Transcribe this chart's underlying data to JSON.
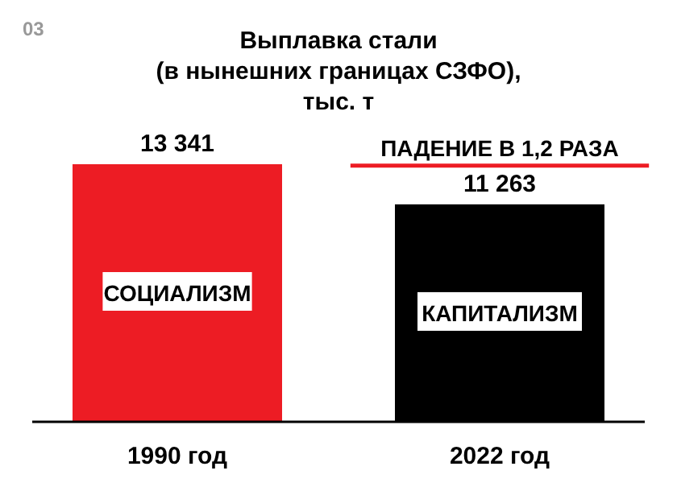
{
  "chart_data": {
    "type": "bar",
    "title": "Выплавка стали\n(в нынешних границах СЗФО),\nтыс. т",
    "categories": [
      "1990 год",
      "2022 год"
    ],
    "values": [
      13341,
      11263
    ],
    "colors": [
      "#ed1c24",
      "#000000"
    ],
    "value_labels": [
      "13 341",
      "11 263"
    ],
    "annotations": [
      "03",
      "СОЦИАЛИЗМ",
      "КАПИТАЛИЗМ",
      "ПАДЕНИЕ В 1,2 РАЗА"
    ]
  }
}
